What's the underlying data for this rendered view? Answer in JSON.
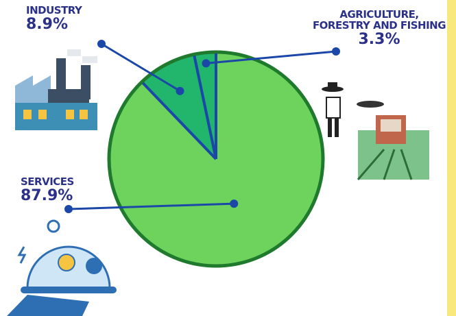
{
  "chart_data": {
    "type": "pie",
    "categories": [
      "AGRICULTURE, FORESTRY AND FISHING",
      "INDUSTRY",
      "SERVICES"
    ],
    "values": [
      3.3,
      8.9,
      87.9
    ],
    "value_labels": [
      "3.3%",
      "8.9%",
      "87.9%"
    ],
    "colors": [
      "#22b56c",
      "#22b56c",
      "#6dd35c"
    ]
  }
}
